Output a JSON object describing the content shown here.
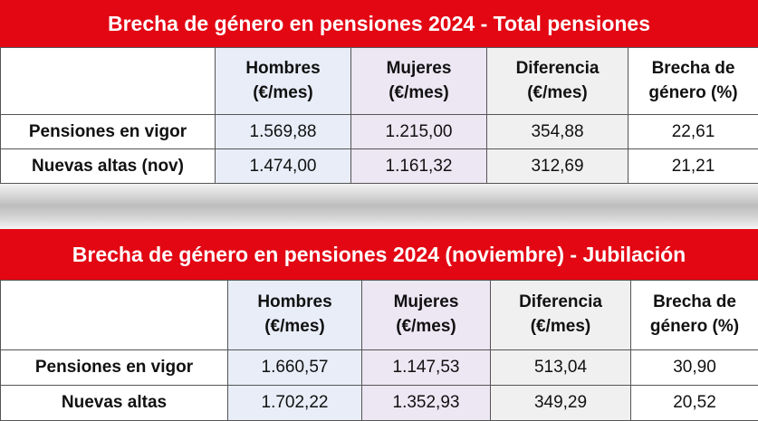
{
  "tables": [
    {
      "title": "Brecha de género en pensiones 2024 - Total pensiones",
      "headers": {
        "hombres": [
          "Hombres",
          "(€/mes)"
        ],
        "mujeres": [
          "Mujeres",
          "(€/mes)"
        ],
        "diferencia": [
          "Diferencia",
          "(€/mes)"
        ],
        "brecha": [
          "Brecha de",
          "género (%)"
        ]
      },
      "rows": [
        {
          "label": "Pensiones en vigor",
          "hombres": "1.569,88",
          "mujeres": "1.215,00",
          "diferencia": "354,88",
          "brecha": "22,61"
        },
        {
          "label": "Nuevas altas (nov)",
          "hombres": "1.474,00",
          "mujeres": "1.161,32",
          "diferencia": "312,69",
          "brecha": "21,21"
        }
      ]
    },
    {
      "title": "Brecha de género en pensiones 2024 (noviembre) - Jubilación",
      "headers": {
        "hombres": [
          "Hombres",
          "(€/mes)"
        ],
        "mujeres": [
          "Mujeres",
          "(€/mes)"
        ],
        "diferencia": [
          "Diferencia",
          "(€/mes)"
        ],
        "brecha": [
          "Brecha de",
          "género (%)"
        ]
      },
      "rows": [
        {
          "label": "Pensiones en vigor",
          "hombres": "1.660,57",
          "mujeres": "1.147,53",
          "diferencia": "513,04",
          "brecha": "30,90"
        },
        {
          "label": "Nuevas altas",
          "hombres": "1.702,22",
          "mujeres": "1.352,93",
          "diferencia": "349,29",
          "brecha": "20,52"
        }
      ]
    }
  ],
  "colors": {
    "title_bg": "#e30613",
    "hombres_bg": "#e8edf8",
    "mujeres_bg": "#ede6f3",
    "diferencia_bg": "#f0f0f0"
  }
}
